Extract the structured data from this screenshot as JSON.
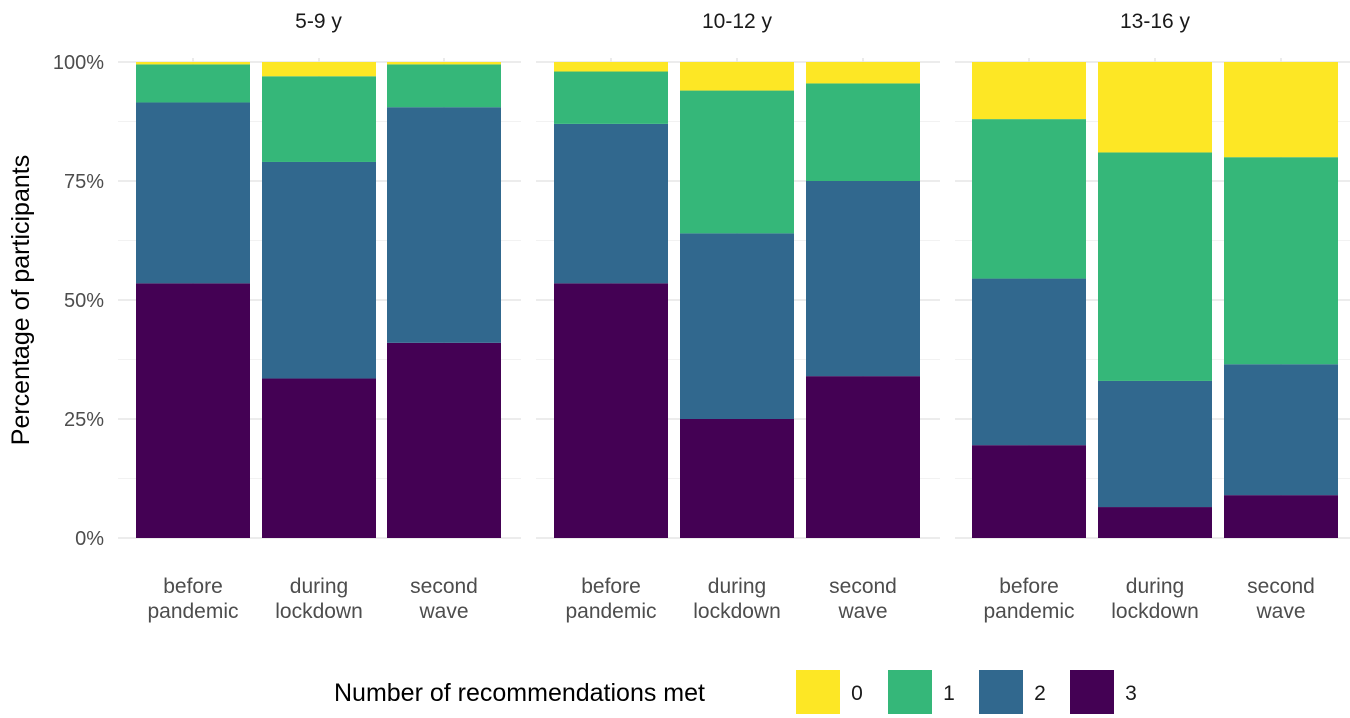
{
  "chart_data": {
    "type": "bar",
    "stacked": true,
    "ylabel": "Percentage of participants",
    "ylim": [
      0,
      100
    ],
    "yticks": [
      "0%",
      "25%",
      "50%",
      "75%",
      "100%"
    ],
    "categories": [
      [
        "before",
        "pandemic"
      ],
      [
        "during",
        "lockdown"
      ],
      [
        "second",
        "wave"
      ]
    ],
    "legend": {
      "title": "Number of recommendations met",
      "placement": "bottom",
      "entries": [
        "0",
        "1",
        "2",
        "3"
      ]
    },
    "colors": {
      "0": "#FDE725",
      "1": "#35B779",
      "2": "#31688E",
      "3": "#440154"
    },
    "facets": [
      {
        "title": "5-9 y",
        "series": [
          {
            "name": "3",
            "values": [
              53.5,
              33.5,
              41
            ]
          },
          {
            "name": "2",
            "values": [
              38,
              45.5,
              49.5
            ]
          },
          {
            "name": "1",
            "values": [
              8,
              18,
              9
            ]
          },
          {
            "name": "0",
            "values": [
              0.5,
              3,
              0.5
            ]
          }
        ]
      },
      {
        "title": "10-12 y",
        "series": [
          {
            "name": "3",
            "values": [
              53.5,
              25,
              34
            ]
          },
          {
            "name": "2",
            "values": [
              33.5,
              39,
              41
            ]
          },
          {
            "name": "1",
            "values": [
              11,
              30,
              20.5
            ]
          },
          {
            "name": "0",
            "values": [
              2,
              6,
              4.5
            ]
          }
        ]
      },
      {
        "title": "13-16 y",
        "series": [
          {
            "name": "3",
            "values": [
              19.5,
              6.5,
              9
            ]
          },
          {
            "name": "2",
            "values": [
              35,
              26.5,
              27.5
            ]
          },
          {
            "name": "1",
            "values": [
              33.5,
              48,
              43.5
            ]
          },
          {
            "name": "0",
            "values": [
              12,
              19,
              20
            ]
          }
        ]
      }
    ]
  }
}
